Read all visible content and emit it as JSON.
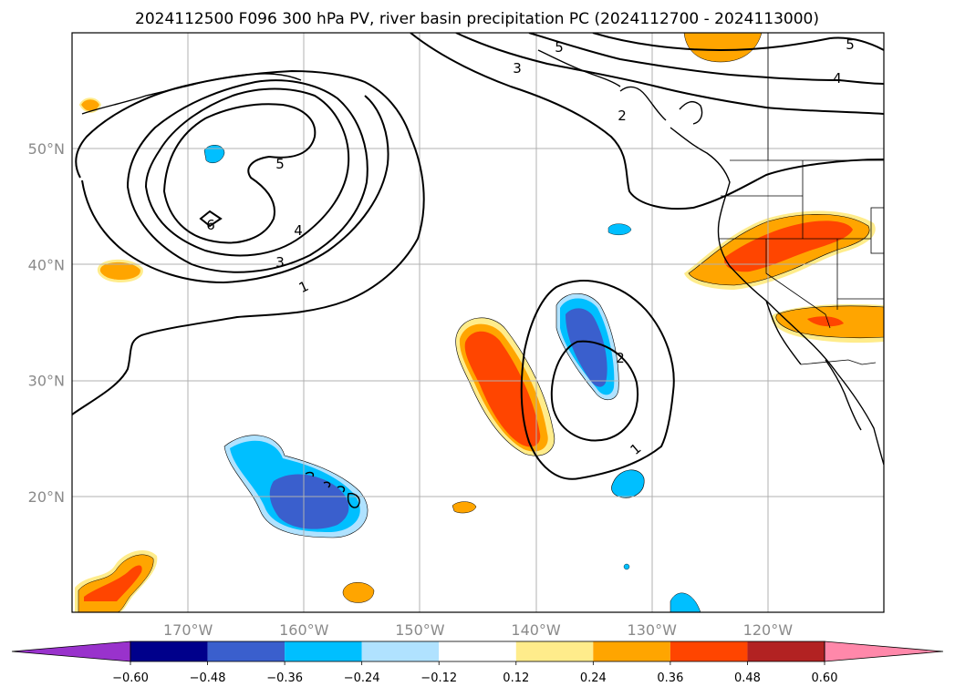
{
  "title": "2024112500 F096 300 hPa PV, river basin precipitation PC (2024112700 - 2024113000)",
  "map": {
    "lon_range": [
      -180,
      -110
    ],
    "lat_range": [
      10,
      60
    ],
    "lon_ticks": [
      {
        "value": -170,
        "label": "170°W"
      },
      {
        "value": -160,
        "label": "160°W"
      },
      {
        "value": -150,
        "label": "150°W"
      },
      {
        "value": -140,
        "label": "140°W"
      },
      {
        "value": -130,
        "label": "130°W"
      },
      {
        "value": -120,
        "label": "120°W"
      }
    ],
    "lat_ticks": [
      {
        "value": 20,
        "label": "20°N"
      },
      {
        "value": 30,
        "label": "30°N"
      },
      {
        "value": 40,
        "label": "40°N"
      },
      {
        "value": 50,
        "label": "50°N"
      }
    ],
    "gridlines": true
  },
  "pv_contour_labels": [
    "1",
    "2",
    "3",
    "4",
    "5",
    "6"
  ],
  "colorbar": {
    "orientation": "horizontal",
    "extend": "both",
    "boundaries": [
      "−0.60",
      "−0.48",
      "−0.36",
      "−0.24",
      "−0.12",
      "0.12",
      "0.24",
      "0.36",
      "0.48",
      "0.60"
    ],
    "colors": [
      "#9932CC",
      "#00008B",
      "#3A5FCD",
      "#00BFFF",
      "#B0E2FF",
      "#FFFFFF",
      "#FFEC8B",
      "#FFA500",
      "#FF4500",
      "#B22222",
      "#FF88AA"
    ]
  }
}
